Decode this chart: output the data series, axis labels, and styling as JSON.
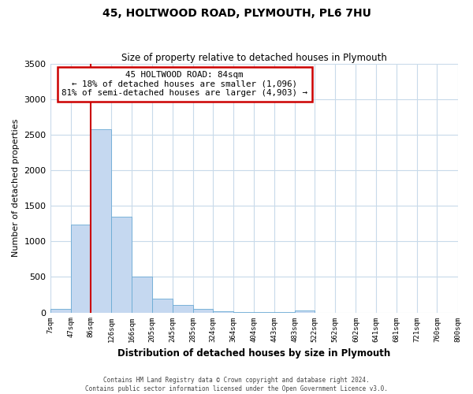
{
  "title": "45, HOLTWOOD ROAD, PLYMOUTH, PL6 7HU",
  "subtitle": "Size of property relative to detached houses in Plymouth",
  "xlabel": "Distribution of detached houses by size in Plymouth",
  "ylabel": "Number of detached properties",
  "bin_labels": [
    "7sqm",
    "47sqm",
    "86sqm",
    "126sqm",
    "166sqm",
    "205sqm",
    "245sqm",
    "285sqm",
    "324sqm",
    "364sqm",
    "404sqm",
    "443sqm",
    "483sqm",
    "522sqm",
    "562sqm",
    "602sqm",
    "641sqm",
    "681sqm",
    "721sqm",
    "760sqm",
    "800sqm"
  ],
  "bin_edges": [
    7,
    47,
    86,
    126,
    166,
    205,
    245,
    285,
    324,
    364,
    404,
    443,
    483,
    522,
    562,
    602,
    641,
    681,
    721,
    760,
    800
  ],
  "bar_values": [
    50,
    1240,
    2580,
    1350,
    500,
    200,
    110,
    45,
    20,
    5,
    5,
    5,
    30,
    0,
    0,
    0,
    0,
    0,
    0,
    0
  ],
  "bar_color": "#c5d8f0",
  "bar_edge_color": "#6aaad4",
  "red_line_x": 86,
  "annotation_title": "45 HOLTWOOD ROAD: 84sqm",
  "annotation_line1": "← 18% of detached houses are smaller (1,096)",
  "annotation_line2": "81% of semi-detached houses are larger (4,903) →",
  "annotation_box_color": "#ffffff",
  "annotation_box_edge_color": "#cc0000",
  "red_line_color": "#cc0000",
  "ylim": [
    0,
    3500
  ],
  "yticks": [
    0,
    500,
    1000,
    1500,
    2000,
    2500,
    3000,
    3500
  ],
  "footer_line1": "Contains HM Land Registry data © Crown copyright and database right 2024.",
  "footer_line2": "Contains public sector information licensed under the Open Government Licence v3.0.",
  "bg_color": "#ffffff",
  "grid_color": "#c8daea"
}
